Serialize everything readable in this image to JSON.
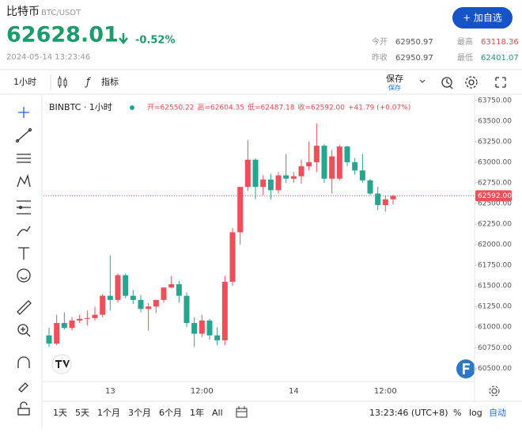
{
  "header": {
    "name": "比特币",
    "symbol": "BTC/USDT",
    "button": "+ 加自选",
    "price": "62628.01",
    "change": "-0.52%",
    "datetime": "2024-05-14 13:23:46",
    "stats": [
      {
        "label": "今开",
        "value": "62950.97"
      },
      {
        "label": "最高",
        "value": "63118.36"
      },
      {
        "label": "昨收",
        "value": "62950.97"
      },
      {
        "label": "最低",
        "value": "62401.07"
      }
    ]
  },
  "toolbar": {
    "interval": "1小时",
    "indicators": "指标",
    "save": "保存",
    "save_sub": "保存"
  },
  "legend": {
    "symbol": "BINBTC · 1小时",
    "fields": [
      "开=62550.22",
      "高=62604.35",
      "低=62487.18",
      "收=62592.00",
      "+41.79 (+0.07%)"
    ]
  },
  "bottom": {
    "ranges": [
      "1天",
      "5天",
      "1个月",
      "3个月",
      "6个月",
      "1年",
      "All"
    ],
    "clock": "13:23:46 (UTC+8)",
    "percent": "%",
    "log": "log",
    "auto": "自动"
  },
  "chart_data": {
    "type": "candlestick",
    "up_color": "#ef4f58",
    "down_color": "#26a68f",
    "categories": [
      null,
      null,
      null,
      null,
      null,
      null,
      null,
      null,
      "13",
      null,
      null,
      null,
      null,
      null,
      null,
      null,
      null,
      null,
      null,
      null,
      "12:00",
      null,
      null,
      null,
      null,
      null,
      null,
      null,
      null,
      null,
      null,
      null,
      "14",
      null,
      null,
      null,
      null,
      null,
      null,
      null,
      null,
      null,
      null,
      null,
      "12:00",
      null
    ],
    "open": [
      60900,
      60800,
      61050,
      60990,
      61080,
      61100,
      61110,
      61150,
      61380,
      61330,
      61630,
      61380,
      61330,
      61220,
      61250,
      61330,
      61480,
      61520,
      61380,
      61050,
      60920,
      61080,
      60900,
      60840,
      61550,
      62150,
      62700,
      63030,
      62700,
      62790,
      62660,
      62840,
      62800,
      62830,
      62950,
      63000,
      63200,
      62800,
      62800,
      63190,
      63000,
      62900,
      62780,
      62620,
      62480,
      62550.22
    ],
    "high": [
      60990,
      61150,
      61180,
      61120,
      61150,
      61200,
      61250,
      61400,
      61870,
      61650,
      61650,
      61450,
      61390,
      61290,
      61330,
      61480,
      61620,
      61560,
      61420,
      61120,
      61150,
      61100,
      61000,
      61620,
      62200,
      62700,
      63270,
      63050,
      62840,
      62860,
      62880,
      63100,
      62880,
      63030,
      63250,
      63470,
      63220,
      63150,
      63210,
      63200,
      63050,
      63100,
      62800,
      62700,
      62600,
      62604.35
    ],
    "low": [
      60760,
      60780,
      60970,
      60960,
      61050,
      61020,
      61080,
      61120,
      61200,
      61300,
      61350,
      61280,
      61180,
      60960,
      61170,
      61300,
      61470,
      61300,
      61000,
      60760,
      60880,
      60850,
      60780,
      60780,
      61500,
      62000,
      62650,
      62550,
      62600,
      62550,
      62620,
      62750,
      62750,
      62740,
      62900,
      62880,
      62750,
      62620,
      62780,
      62950,
      62850,
      62750,
      62600,
      62420,
      62400,
      62487.18
    ],
    "close": [
      60800,
      61050,
      60990,
      61080,
      61100,
      61110,
      61150,
      61380,
      61330,
      61630,
      61380,
      61330,
      61220,
      61250,
      61330,
      61480,
      61520,
      61380,
      61050,
      60920,
      61080,
      60900,
      60840,
      61550,
      62150,
      62700,
      63030,
      62700,
      62790,
      62660,
      62840,
      62800,
      62830,
      62950,
      63000,
      63200,
      62800,
      63070,
      63190,
      63000,
      62900,
      62780,
      62620,
      62480,
      62550,
      62592
    ],
    "ylim": [
      60340,
      63815
    ],
    "yticks": [
      {
        "value": 60500,
        "label": "60500.00"
      },
      {
        "value": 60750,
        "label": "60750.00"
      },
      {
        "value": 61000,
        "label": "61000.00"
      },
      {
        "value": 61250,
        "label": "61250.00"
      },
      {
        "value": 61500,
        "label": "61500.00"
      },
      {
        "value": 61750,
        "label": "61750.00"
      },
      {
        "value": 62000,
        "label": "62000.00"
      },
      {
        "value": 62250,
        "label": "62250.00"
      },
      {
        "value": 62500,
        "label": "62500.00"
      },
      {
        "value": 62750,
        "label": "62750.00"
      },
      {
        "value": 63000,
        "label": "63000.00"
      },
      {
        "value": 63250,
        "label": "63250.00"
      },
      {
        "value": 63500,
        "label": "63500.00"
      },
      {
        "value": 63750,
        "label": "63750.00"
      }
    ],
    "last_price": {
      "value": 62592,
      "label": "62592.00"
    }
  }
}
